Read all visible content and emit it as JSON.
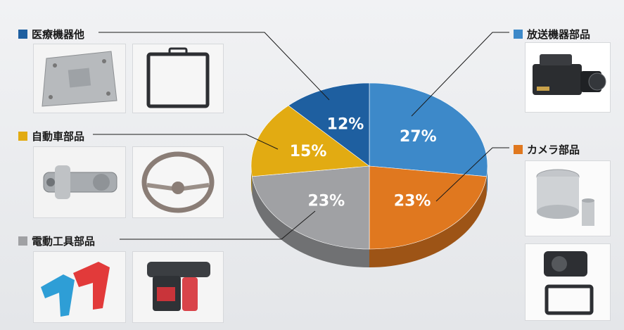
{
  "chart_data": {
    "type": "pie",
    "title": "",
    "slices": [
      {
        "label": "放送機器部品",
        "value": 27,
        "value_label": "27%",
        "color": "#3d89c9"
      },
      {
        "label": "カメラ部品",
        "value": 23,
        "value_label": "23%",
        "color": "#e0781f"
      },
      {
        "label": "電動工具部品",
        "value": 23,
        "value_label": "23%",
        "color": "#a0a1a4"
      },
      {
        "label": "自動車部品",
        "value": 15,
        "value_label": "15%",
        "color": "#e2ab12"
      },
      {
        "label": "医療機器他",
        "value": 12,
        "value_label": "12%",
        "color": "#1e5fa0"
      }
    ]
  },
  "icons": {
    "medical": "medical-device-parts-photo",
    "auto": "automotive-parts-photo",
    "tool": "power-tool-parts-photo",
    "broadcast": "broadcast-camera-photo",
    "camera": "camera-parts-photo"
  }
}
